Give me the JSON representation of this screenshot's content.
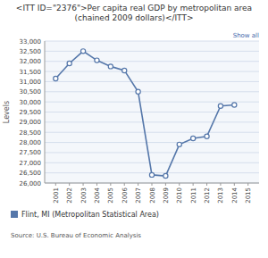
{
  "chart_data": {
    "type": "line",
    "title": "<ITT ID=\"2376\">Per capita real GDP by metropolitan area (chained 2009 dollars)</ITT>",
    "ylabel": "Levels",
    "source": "Source: U.S. Bureau of Economic Analysis",
    "annotations": [
      "Show all"
    ],
    "x": [
      2001,
      2002,
      2003,
      2004,
      2005,
      2006,
      2007,
      2008,
      2009,
      2010,
      2011,
      2012,
      2013,
      2014
    ],
    "series": [
      {
        "name": "Flint, MI (Metropolitan Statistical Area)",
        "color": "#5577aa",
        "marker": "circle",
        "values": [
          31150,
          31900,
          32500,
          32050,
          31750,
          31550,
          30500,
          26400,
          26350,
          27900,
          28200,
          28300,
          29800,
          29850
        ]
      }
    ],
    "xlim": [
      2000.2,
      2015.8
    ],
    "xticks": [
      2001,
      2002,
      2003,
      2004,
      2005,
      2006,
      2007,
      2008,
      2009,
      2010,
      2011,
      2012,
      2013,
      2014,
      2015
    ],
    "ylim": [
      26000,
      33000
    ],
    "yticks": [
      {
        "value": 26000,
        "label": "26,000"
      },
      {
        "value": 26500,
        "label": "26,500"
      },
      {
        "value": 27000,
        "label": "27,000"
      },
      {
        "value": 27500,
        "label": "27,500"
      },
      {
        "value": 28000,
        "label": "28,000"
      },
      {
        "value": 28500,
        "label": "28,500"
      },
      {
        "value": 29000,
        "label": "29,000"
      },
      {
        "value": 29500,
        "label": "29,500"
      },
      {
        "value": 30000,
        "label": "30,000"
      },
      {
        "value": 30500,
        "label": "30,500"
      },
      {
        "value": 31000,
        "label": "31,000"
      },
      {
        "value": 31500,
        "label": "31,500"
      },
      {
        "value": 32000,
        "label": "32,000"
      },
      {
        "value": 32500,
        "label": "32,500"
      },
      {
        "value": 33000,
        "label": "33,000"
      }
    ],
    "grid": true,
    "legend": "lower left"
  }
}
